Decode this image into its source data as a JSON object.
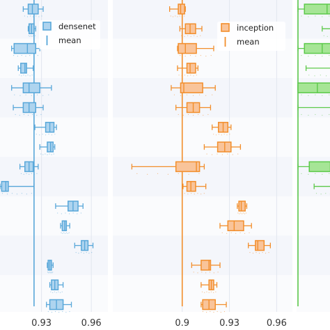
{
  "chart_data": [
    {
      "type": "box",
      "orientation": "horizontal",
      "legend": {
        "box_label": "densenet",
        "mean_label": "mean",
        "placement": "top-right"
      },
      "color": "#58a7d9",
      "fill": "#aed4ef",
      "xlim": [
        0.905,
        0.97
      ],
      "xticks": [
        0.93,
        0.96
      ],
      "tick_labels": [
        "0.93",
        "0.96"
      ],
      "mean": 0.9255,
      "boxes": [
        {
          "whislo": 0.919,
          "q1": 0.922,
          "med": 0.9245,
          "q3": 0.928,
          "whishi": 0.931
        },
        {
          "whislo": 0.922,
          "q1": 0.9225,
          "med": 0.924,
          "q3": 0.9255,
          "whishi": 0.9265
        },
        {
          "whislo": 0.912,
          "q1": 0.9135,
          "med": 0.9215,
          "q3": 0.9265,
          "whishi": 0.929
        },
        {
          "whislo": 0.916,
          "q1": 0.9175,
          "med": 0.92,
          "q3": 0.921,
          "whishi": 0.925
        },
        {
          "whislo": 0.912,
          "q1": 0.919,
          "med": 0.9225,
          "q3": 0.929,
          "whishi": 0.936
        },
        {
          "whislo": 0.913,
          "q1": 0.919,
          "med": 0.9225,
          "q3": 0.9265,
          "whishi": 0.931
        },
        {
          "whislo": 0.926,
          "q1": 0.9325,
          "med": 0.935,
          "q3": 0.9375,
          "whishi": 0.939
        },
        {
          "whislo": 0.929,
          "q1": 0.9335,
          "med": 0.9355,
          "q3": 0.937,
          "whishi": 0.938
        },
        {
          "whislo": 0.917,
          "q1": 0.92,
          "med": 0.9225,
          "q3": 0.925,
          "whishi": 0.928
        },
        {
          "whislo": 0.905,
          "q1": 0.906,
          "med": 0.9085,
          "q3": 0.91,
          "whishi": 0.9255
        },
        {
          "whislo": 0.9385,
          "q1": 0.946,
          "med": 0.949,
          "q3": 0.952,
          "whishi": 0.955
        },
        {
          "whislo": 0.9415,
          "q1": 0.9425,
          "med": 0.944,
          "q3": 0.945,
          "whishi": 0.947
        },
        {
          "whislo": 0.95,
          "q1": 0.954,
          "med": 0.956,
          "q3": 0.958,
          "whishi": 0.961
        },
        {
          "whislo": 0.9335,
          "q1": 0.934,
          "med": 0.935,
          "q3": 0.936,
          "whishi": 0.937
        },
        {
          "whislo": 0.935,
          "q1": 0.936,
          "med": 0.938,
          "q3": 0.94,
          "whishi": 0.943
        },
        {
          "whislo": 0.933,
          "q1": 0.935,
          "med": 0.939,
          "q3": 0.943,
          "whishi": 0.948
        }
      ]
    },
    {
      "type": "box",
      "orientation": "horizontal",
      "legend": {
        "box_label": "inception",
        "mean_label": "mean",
        "placement": "top-right"
      },
      "color": "#f28e2b",
      "fill": "#f9c49a",
      "xlim": [
        0.855,
        0.97
      ],
      "xticks": [
        0.9,
        0.93,
        0.96
      ],
      "tick_labels": [
        "0.9",
        "0.93",
        "0.96"
      ],
      "mean": 0.9,
      "boxes": [
        {
          "whislo": 0.892,
          "q1": 0.8975,
          "med": 0.899,
          "q3": 0.9015,
          "whishi": 0.902
        },
        {
          "whislo": 0.8985,
          "q1": 0.902,
          "med": 0.905,
          "q3": 0.9085,
          "whishi": 0.9125
        },
        {
          "whislo": 0.897,
          "q1": 0.8975,
          "med": 0.902,
          "q3": 0.909,
          "whishi": 0.92
        },
        {
          "whislo": 0.897,
          "q1": 0.903,
          "med": 0.905,
          "q3": 0.9085,
          "whishi": 0.91
        },
        {
          "whislo": 0.893,
          "q1": 0.899,
          "med": 0.901,
          "q3": 0.913,
          "whishi": 0.921
        },
        {
          "whislo": 0.896,
          "q1": 0.903,
          "med": 0.907,
          "q3": 0.911,
          "whishi": 0.918
        },
        {
          "whislo": 0.919,
          "q1": 0.923,
          "med": 0.926,
          "q3": 0.929,
          "whishi": 0.931
        },
        {
          "whislo": 0.914,
          "q1": 0.9225,
          "med": 0.927,
          "q3": 0.931,
          "whishi": 0.937
        },
        {
          "whislo": 0.868,
          "q1": 0.896,
          "med": 0.909,
          "q3": 0.911,
          "whishi": 0.914
        },
        {
          "whislo": 0.9005,
          "q1": 0.903,
          "med": 0.9055,
          "q3": 0.9085,
          "whishi": 0.915
        },
        {
          "whislo": 0.935,
          "q1": 0.936,
          "med": 0.9375,
          "q3": 0.94,
          "whishi": 0.941
        },
        {
          "whislo": 0.924,
          "q1": 0.929,
          "med": 0.933,
          "q3": 0.939,
          "whishi": 0.944
        },
        {
          "whislo": 0.942,
          "q1": 0.9465,
          "med": 0.948,
          "q3": 0.952,
          "whishi": 0.956
        },
        {
          "whislo": 0.906,
          "q1": 0.912,
          "med": 0.917,
          "q3": 0.918,
          "whishi": 0.924
        },
        {
          "whislo": 0.912,
          "q1": 0.917,
          "med": 0.9185,
          "q3": 0.92,
          "whishi": 0.922
        },
        {
          "whislo": 0.912,
          "q1": 0.913,
          "med": 0.917,
          "q3": 0.921,
          "whishi": 0.928
        }
      ]
    },
    {
      "type": "box",
      "orientation": "horizontal",
      "color": "#5cc94a",
      "fill": "#a6e596",
      "xlim": [
        0.0,
        1.0
      ],
      "partial": true,
      "mean": 0.0,
      "boxes": [
        {
          "whislo": 0.0,
          "q1": 0.08,
          "med": 0.36,
          "q3": 0.6,
          "whishi": 0.6
        },
        {
          "whislo": 0.3,
          "q1": 0.48,
          "med": 0.6,
          "q3": 0.6,
          "whishi": 0.6
        },
        {
          "whislo": 0.0,
          "q1": 0.08,
          "med": 0.3,
          "q3": 0.6,
          "whishi": 0.6
        },
        {
          "whislo": 0.1,
          "q1": 0.46,
          "med": 0.6,
          "q3": 0.6,
          "whishi": 0.6
        },
        {
          "whislo": 0.0,
          "q1": 0.0,
          "med": 0.24,
          "q3": 0.6,
          "whishi": 0.6
        },
        {
          "whislo": 0.0,
          "q1": 0.46,
          "med": 0.6,
          "q3": 0.6,
          "whishi": 0.6
        },
        null,
        {
          "whislo": 0.44,
          "q1": 0.6,
          "med": 0.6,
          "q3": 0.6,
          "whishi": 0.6
        },
        {
          "whislo": 0.0,
          "q1": 0.14,
          "med": 0.4,
          "q3": 0.6,
          "whishi": 0.6
        },
        {
          "whislo": 0.2,
          "q1": 0.44,
          "med": 0.56,
          "q3": 0.6,
          "whishi": 0.6
        },
        null,
        null,
        null,
        null,
        null,
        null
      ]
    }
  ]
}
